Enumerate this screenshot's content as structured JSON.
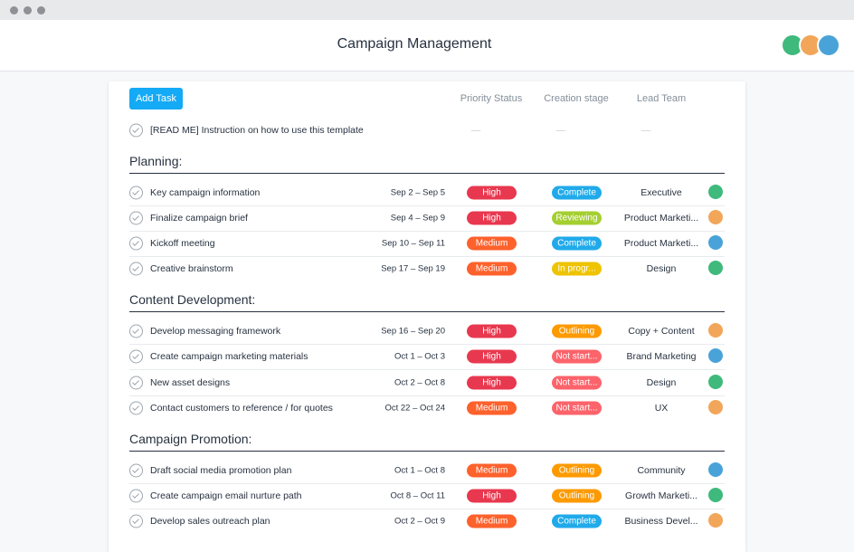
{
  "header": {
    "title": "Campaign Management"
  },
  "toolbar": {
    "button": "Add Task",
    "columns": [
      "Priority Status",
      "Creation stage",
      "Lead Team"
    ]
  },
  "readme": {
    "name": "[READ ME] Instruction on how to use this template",
    "priority": "—",
    "stage": "—",
    "team": "—"
  },
  "sections": [
    {
      "title": "Planning:",
      "tasks": [
        {
          "name": "Key campaign information",
          "dates": "Sep 2 – Sep 5",
          "priority": {
            "label": "High",
            "color": "#e8384f"
          },
          "stage": {
            "label": "Complete",
            "color": "#20aaea"
          },
          "team": "Executive"
        },
        {
          "name": "Finalize campaign brief",
          "dates": "Sep 4 – Sep 9",
          "priority": {
            "label": "High",
            "color": "#e8384f"
          },
          "stage": {
            "label": "Reviewing",
            "color": "#a4cf30"
          },
          "team": "Product Marketi..."
        },
        {
          "name": "Kickoff meeting",
          "dates": "Sep 10 – Sep 11",
          "priority": {
            "label": "Medium",
            "color": "#fd612c"
          },
          "stage": {
            "label": "Complete",
            "color": "#20aaea"
          },
          "team": "Product Marketi..."
        },
        {
          "name": "Creative brainstorm",
          "dates": "Sep 17 – Sep 19",
          "priority": {
            "label": "Medium",
            "color": "#fd612c"
          },
          "stage": {
            "label": "In progr...",
            "color": "#eec300"
          },
          "team": "Design"
        }
      ]
    },
    {
      "title": "Content Development:",
      "tasks": [
        {
          "name": "Develop messaging framework",
          "dates": "Sep 16 – Sep 20",
          "priority": {
            "label": "High",
            "color": "#e8384f"
          },
          "stage": {
            "label": "Outlining",
            "color": "#fd9a00"
          },
          "team": "Copy + Content"
        },
        {
          "name": "Create campaign marketing materials",
          "dates": "Oct 1 – Oct 3",
          "priority": {
            "label": "High",
            "color": "#e8384f"
          },
          "stage": {
            "label": "Not start...",
            "color": "#fc636b"
          },
          "team": "Brand Marketing"
        },
        {
          "name": "New asset designs",
          "dates": "Oct 2 – Oct 8",
          "priority": {
            "label": "High",
            "color": "#e8384f"
          },
          "stage": {
            "label": "Not start...",
            "color": "#fc636b"
          },
          "team": "Design"
        },
        {
          "name": "Contact customers to reference / for quotes",
          "dates": "Oct 22 – Oct 24",
          "priority": {
            "label": "Medium",
            "color": "#fd612c"
          },
          "stage": {
            "label": "Not start...",
            "color": "#fc636b"
          },
          "team": "UX"
        }
      ]
    },
    {
      "title": "Campaign Promotion:",
      "tasks": [
        {
          "name": "Draft social media promotion plan",
          "dates": "Oct 1 – Oct 8",
          "priority": {
            "label": "Medium",
            "color": "#fd612c"
          },
          "stage": {
            "label": "Outlining",
            "color": "#fd9a00"
          },
          "team": "Community"
        },
        {
          "name": "Create campaign email nurture path",
          "dates": "Oct 8 – Oct 11",
          "priority": {
            "label": "High",
            "color": "#e8384f"
          },
          "stage": {
            "label": "Outlining",
            "color": "#fd9a00"
          },
          "team": "Growth Marketi..."
        },
        {
          "name": "Develop sales outreach plan",
          "dates": "Oct 2 – Oct 9",
          "priority": {
            "label": "Medium",
            "color": "#fd612c"
          },
          "stage": {
            "label": "Complete",
            "color": "#20aaea"
          },
          "team": "Business Devel..."
        }
      ]
    }
  ]
}
